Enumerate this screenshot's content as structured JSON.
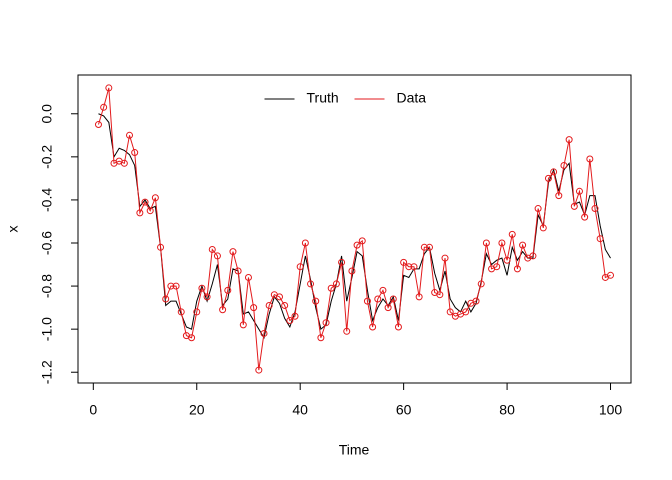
{
  "chart_data": {
    "type": "line",
    "xlabel": "Time",
    "ylabel": "x",
    "x": [
      1,
      2,
      3,
      4,
      5,
      6,
      7,
      8,
      9,
      10,
      11,
      12,
      13,
      14,
      15,
      16,
      17,
      18,
      19,
      20,
      21,
      22,
      23,
      24,
      25,
      26,
      27,
      28,
      29,
      30,
      31,
      32,
      33,
      34,
      35,
      36,
      37,
      38,
      39,
      40,
      41,
      42,
      43,
      44,
      45,
      46,
      47,
      48,
      49,
      50,
      51,
      52,
      53,
      54,
      55,
      56,
      57,
      58,
      59,
      60,
      61,
      62,
      63,
      64,
      65,
      66,
      67,
      68,
      69,
      70,
      71,
      72,
      73,
      74,
      75,
      76,
      77,
      78,
      79,
      80,
      81,
      82,
      83,
      84,
      85,
      86,
      87,
      88,
      89,
      90,
      91,
      92,
      93,
      94,
      95,
      96,
      97,
      98,
      99,
      100
    ],
    "series": [
      {
        "name": "Truth",
        "color": "#000000",
        "markers": false,
        "values": [
          0.0,
          -0.01,
          -0.04,
          -0.2,
          -0.16,
          -0.17,
          -0.19,
          -0.24,
          -0.43,
          -0.4,
          -0.44,
          -0.43,
          -0.62,
          -0.89,
          -0.87,
          -0.87,
          -0.93,
          -0.99,
          -1.0,
          -0.87,
          -0.8,
          -0.87,
          -0.79,
          -0.7,
          -0.89,
          -0.86,
          -0.72,
          -0.73,
          -0.93,
          -0.92,
          -0.96,
          -1.0,
          -1.04,
          -0.93,
          -0.85,
          -0.88,
          -0.95,
          -0.99,
          -0.92,
          -0.79,
          -0.66,
          -0.77,
          -0.9,
          -1.0,
          -0.98,
          -0.87,
          -0.79,
          -0.66,
          -0.87,
          -0.76,
          -0.64,
          -0.66,
          -0.82,
          -0.96,
          -0.9,
          -0.86,
          -0.89,
          -0.85,
          -0.96,
          -0.75,
          -0.76,
          -0.72,
          -0.72,
          -0.65,
          -0.62,
          -0.74,
          -0.82,
          -0.73,
          -0.86,
          -0.9,
          -0.92,
          -0.87,
          -0.92,
          -0.88,
          -0.78,
          -0.65,
          -0.7,
          -0.68,
          -0.67,
          -0.75,
          -0.62,
          -0.68,
          -0.64,
          -0.67,
          -0.67,
          -0.47,
          -0.52,
          -0.32,
          -0.26,
          -0.36,
          -0.26,
          -0.23,
          -0.42,
          -0.41,
          -0.47,
          -0.38,
          -0.38,
          -0.52,
          -0.63,
          -0.67
        ]
      },
      {
        "name": "Data",
        "color": "#e31a1c",
        "markers": true,
        "values": [
          -0.05,
          0.03,
          0.12,
          -0.23,
          -0.22,
          -0.23,
          -0.1,
          -0.18,
          -0.46,
          -0.41,
          -0.45,
          -0.39,
          -0.62,
          -0.86,
          -0.8,
          -0.8,
          -0.92,
          -1.03,
          -1.04,
          -0.92,
          -0.81,
          -0.85,
          -0.63,
          -0.66,
          -0.91,
          -0.82,
          -0.64,
          -0.73,
          -0.98,
          -0.76,
          -0.9,
          -1.19,
          -1.02,
          -0.89,
          -0.84,
          -0.85,
          -0.89,
          -0.96,
          -0.94,
          -0.71,
          -0.6,
          -0.79,
          -0.87,
          -1.04,
          -0.97,
          -0.81,
          -0.79,
          -0.69,
          -1.01,
          -0.73,
          -0.61,
          -0.59,
          -0.87,
          -0.99,
          -0.86,
          -0.82,
          -0.9,
          -0.86,
          -0.99,
          -0.69,
          -0.71,
          -0.71,
          -0.85,
          -0.62,
          -0.62,
          -0.83,
          -0.84,
          -0.67,
          -0.92,
          -0.94,
          -0.93,
          -0.92,
          -0.88,
          -0.87,
          -0.79,
          -0.6,
          -0.72,
          -0.71,
          -0.6,
          -0.68,
          -0.56,
          -0.72,
          -0.61,
          -0.67,
          -0.66,
          -0.44,
          -0.53,
          -0.3,
          -0.27,
          -0.38,
          -0.24,
          -0.12,
          -0.43,
          -0.36,
          -0.48,
          -0.21,
          -0.44,
          -0.58,
          -0.76,
          -0.75
        ]
      }
    ],
    "xlim": [
      -2.96,
      103.96
    ],
    "xticks": [
      0,
      20,
      40,
      60,
      80,
      100
    ],
    "ylim": [
      -1.25,
      0.18
    ],
    "yticks": [
      {
        "value": 0,
        "label": "0.0"
      },
      -0.2,
      -0.4,
      -0.6,
      -0.8,
      {
        "value": -1,
        "label": "-1.0"
      },
      -1.2
    ],
    "legend": "top"
  }
}
